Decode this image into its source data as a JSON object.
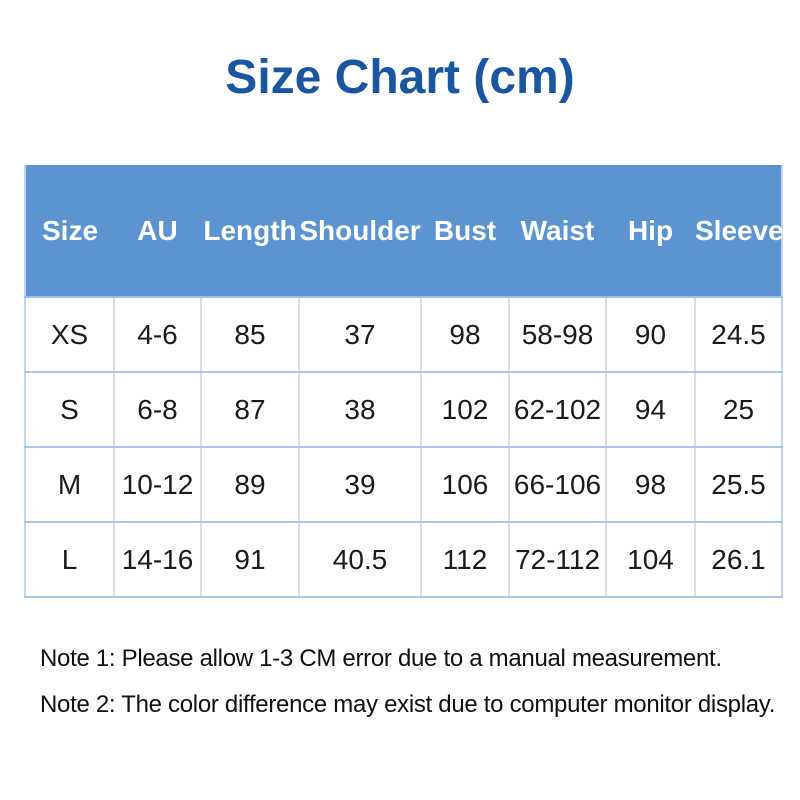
{
  "title": "Size Chart (cm)",
  "colors": {
    "title_text": "#1a56a0",
    "header_bg": "#5b94d0",
    "header_text": "#ffffff",
    "row_separator": "#a6c7e7",
    "column_separator": "#d8dde8",
    "body_text": "#1b1b1b"
  },
  "chart_data": {
    "type": "table",
    "title": "Size Chart (cm)",
    "columns": [
      "Size",
      "AU",
      "Length",
      "Shoulder",
      "Bust",
      "Waist",
      "Hip",
      "Sleeve"
    ],
    "rows": [
      [
        "XS",
        "4-6",
        "85",
        "37",
        "98",
        "58-98",
        "90",
        "24.5"
      ],
      [
        "S",
        "6-8",
        "87",
        "38",
        "102",
        "62-102",
        "94",
        "25"
      ],
      [
        "M",
        "10-12",
        "89",
        "39",
        "106",
        "66-106",
        "98",
        "25.5"
      ],
      [
        "L",
        "14-16",
        "91",
        "40.5",
        "112",
        "72-112",
        "104",
        "26.1"
      ]
    ],
    "units": "cm"
  },
  "notes": {
    "note1": "Note 1: Please allow 1-3 CM error due to a manual measurement.",
    "note2": "Note 2: The color difference may exist due to computer monitor display."
  }
}
